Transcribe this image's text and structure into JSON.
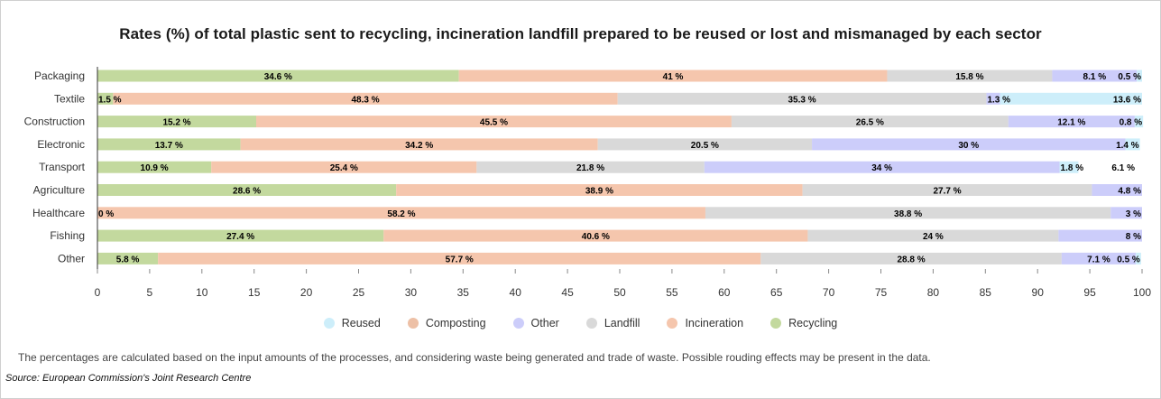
{
  "chart_data": {
    "type": "bar",
    "orientation": "horizontal",
    "stacked": true,
    "title": "Rates (%) of total plastic sent to recycling, incineration landfill prepared to be reused or lost and mismanaged by each sector",
    "categories": [
      "Packaging",
      "Textile",
      "Construction",
      "Electronic",
      "Transport",
      "Agriculture",
      "Healthcare",
      "Fishing",
      "Other"
    ],
    "series": [
      {
        "name": "Recycling",
        "color": "#c3d99e",
        "values": [
          34.6,
          1.5,
          15.2,
          13.7,
          10.9,
          28.6,
          0,
          27.4,
          5.8
        ]
      },
      {
        "name": "Incineration",
        "color": "#f5c6ad",
        "values": [
          41,
          48.3,
          45.5,
          34.2,
          25.4,
          38.9,
          58.2,
          40.6,
          57.7
        ]
      },
      {
        "name": "Landfill",
        "color": "#d9d9d9",
        "values": [
          15.8,
          35.3,
          26.5,
          20.5,
          21.8,
          27.7,
          38.8,
          24,
          28.8
        ]
      },
      {
        "name": "Other",
        "color": "#cccdfa",
        "values": [
          8.1,
          1.3,
          12.1,
          30,
          34,
          4.8,
          3,
          8,
          7.1
        ]
      },
      {
        "name": "Composting",
        "color": "#f5c6ad",
        "values": [
          0,
          0,
          0,
          0,
          0,
          0,
          0,
          0,
          0
        ]
      },
      {
        "name": "Reused",
        "color": "#cdeefa",
        "values": [
          0.5,
          13.6,
          0.8,
          1.4,
          1.8,
          0,
          0,
          0,
          0.5
        ]
      }
    ],
    "xlim": [
      0,
      100
    ],
    "xticks": [
      0,
      5,
      10,
      15,
      20,
      25,
      30,
      35,
      40,
      45,
      50,
      55,
      60,
      65,
      70,
      75,
      80,
      85,
      90,
      95,
      100
    ],
    "extra_labels": {
      "Transport": "6.1 %"
    },
    "label_suffix": " %",
    "legend_position": "bottom",
    "legend_order": [
      "Reused",
      "Composting",
      "Other",
      "Landfill",
      "Incineration",
      "Recycling"
    ],
    "grid": false
  },
  "footnote": "The percentages are calculated based on the input amounts of the processes, and considering waste being generated and trade of waste. Possible rouding effects may be present in the data.",
  "source": "Source: European Commission's Joint Research Centre"
}
